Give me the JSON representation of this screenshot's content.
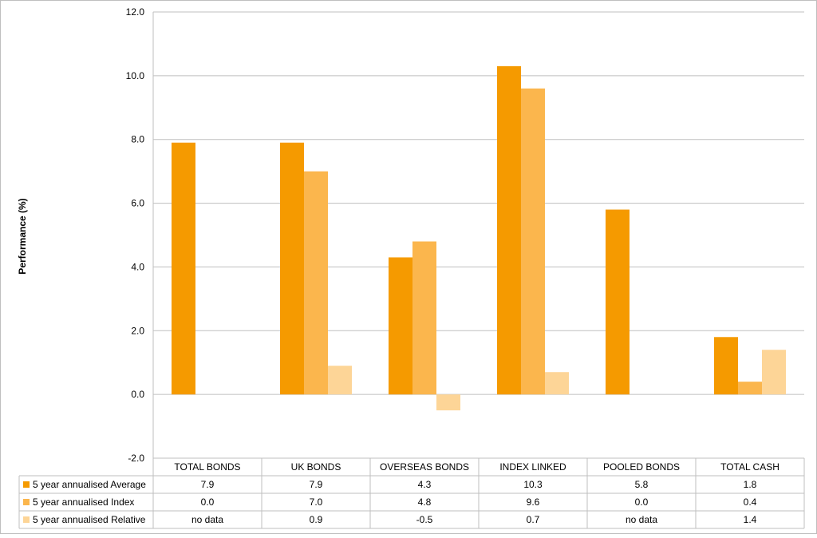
{
  "chart_data": {
    "type": "bar",
    "ylabel": "Performance (%)",
    "ylim": [
      -2.0,
      12.0
    ],
    "yticks": [
      "-2.0",
      "0.0",
      "2.0",
      "4.0",
      "6.0",
      "8.0",
      "10.0",
      "12.0"
    ],
    "grid": true,
    "legend": "data-table-below",
    "categories": [
      "TOTAL BONDS",
      "UK BONDS",
      "OVERSEAS BONDS",
      "INDEX LINKED",
      "POOLED BONDS",
      "TOTAL CASH"
    ],
    "series": [
      {
        "name": "5 year annualised Average",
        "color": "#f59a00",
        "values": [
          7.9,
          7.9,
          4.3,
          10.3,
          5.8,
          1.8
        ],
        "table": [
          "7.9",
          "7.9",
          "4.3",
          "10.3",
          "5.8",
          "1.8"
        ]
      },
      {
        "name": "5 year annualised Index",
        "color": "#fbb64d",
        "values": [
          0.0,
          7.0,
          4.8,
          9.6,
          0.0,
          0.4
        ],
        "table": [
          "0.0",
          "7.0",
          "4.8",
          "9.6",
          "0.0",
          "0.4"
        ]
      },
      {
        "name": "5 year annualised Relative",
        "color": "#fdd597",
        "values": [
          null,
          0.9,
          -0.5,
          0.7,
          null,
          1.4
        ],
        "table": [
          "no data",
          "0.9",
          "-0.5",
          "0.7",
          "no data",
          "1.4"
        ]
      }
    ]
  }
}
